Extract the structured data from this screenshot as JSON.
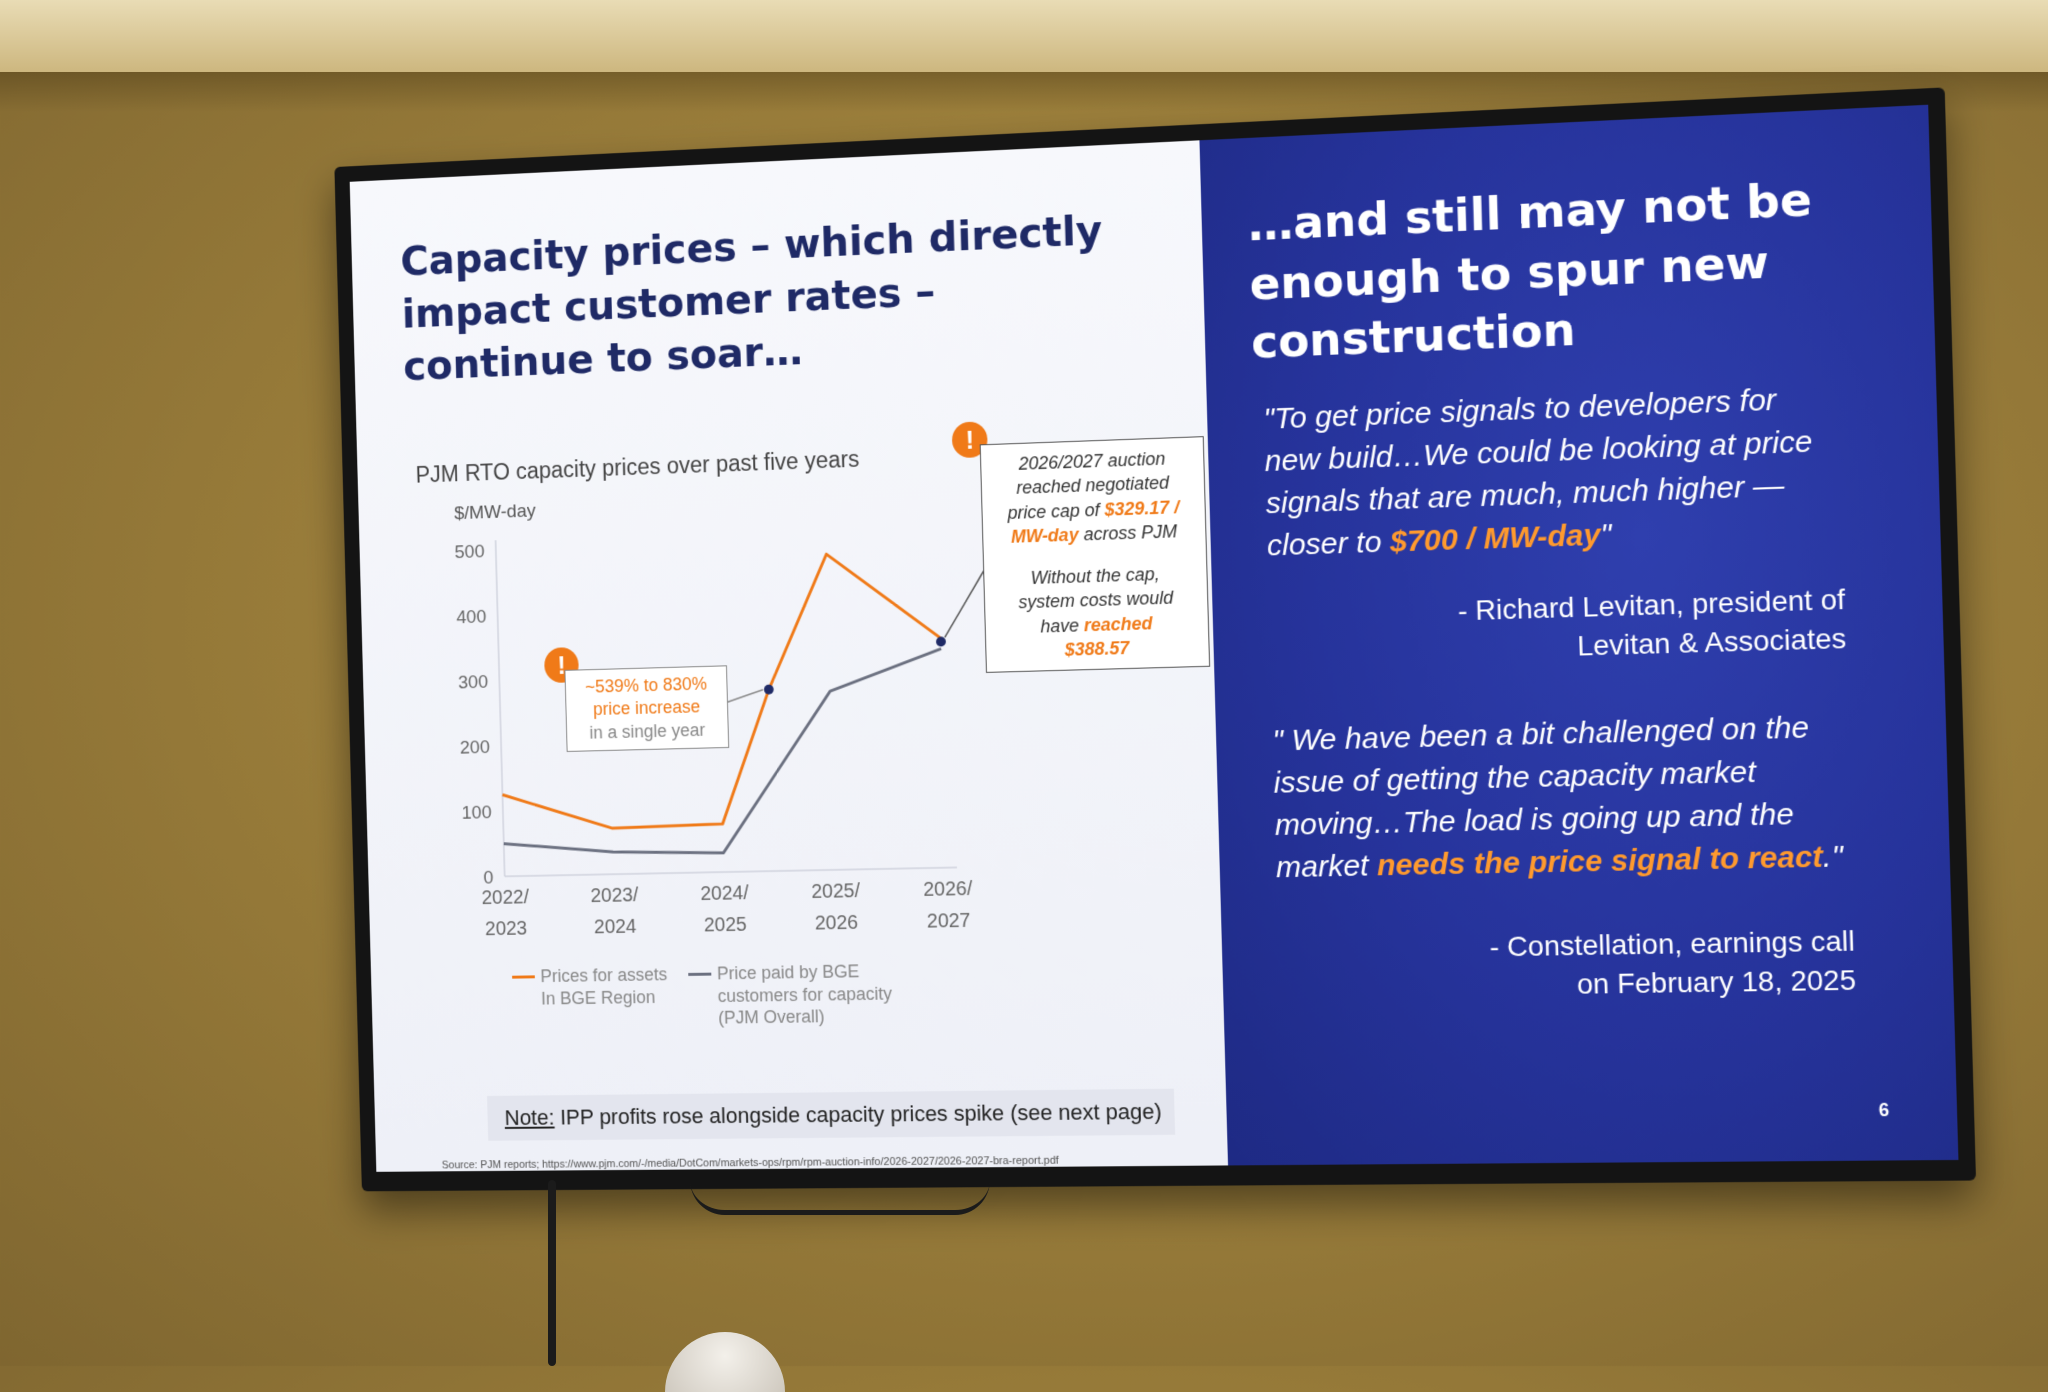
{
  "slide": {
    "left_title": "Capacity prices – which directly impact customer rates – continue to soar…",
    "right_title": "…and still may not be enough to spur new construction",
    "page_number": "6"
  },
  "chart_data": {
    "type": "line",
    "title": "PJM RTO capacity prices over past five years",
    "ylabel": "$/MW-day",
    "xlabel": "",
    "ylim": [
      0,
      500
    ],
    "yticks": [
      "0",
      "100",
      "200",
      "300",
      "400",
      "500"
    ],
    "categories": [
      "2022/ 2023",
      "2023/ 2024",
      "2024/ 2025",
      "2025/ 2026",
      "2026/ 2027"
    ],
    "category_lines": [
      [
        "2022/",
        "2023"
      ],
      [
        "2023/",
        "2024"
      ],
      [
        "2024/",
        "2025"
      ],
      [
        "2025/",
        "2026"
      ],
      [
        "2026/",
        "2027"
      ]
    ],
    "series": [
      {
        "name": "Prices for assets In BGE Region",
        "legend_lines": [
          "Prices for assets",
          "In BGE Region"
        ],
        "color": "#f07a18",
        "x": [
          0,
          1,
          2,
          2.45,
          3,
          4
        ],
        "values": [
          125,
          70,
          73,
          275,
          477,
          345
        ]
      },
      {
        "name": "Price paid by BGE customers for capacity (PJM Overall)",
        "legend_lines": [
          "Price paid by BGE",
          "customers for capacity",
          "(PJM Overall)"
        ],
        "color": "#6b7080",
        "x": [
          0,
          1,
          2,
          3,
          4
        ],
        "values": [
          50,
          34,
          29,
          270,
          329.17
        ]
      }
    ],
    "markers": [
      {
        "x": 2.45,
        "value": 275,
        "color": "#1f2a66"
      },
      {
        "x": 4,
        "value": 340,
        "color": "#1f2a66"
      }
    ],
    "annotations": {
      "increase": {
        "line1": "~539% to 830%",
        "line2": "price increase",
        "line3": "in a single year"
      },
      "auction": {
        "l1": "2026/2027 auction",
        "l2": "reached negotiated",
        "l3a": "price cap of ",
        "l3b": "$329.17 /",
        "l4a": "MW-day",
        "l4b": " across PJM",
        "l5": "Without the cap,",
        "l6": "system costs would",
        "l7a": "have ",
        "l7b": "reached",
        "l8": "$388.57"
      },
      "warn_glyph": "!"
    }
  },
  "note": {
    "label": "Note:",
    "text": " IPP profits rose alongside capacity prices spike (see next page)"
  },
  "source": "Source: PJM reports; https://www.pjm.com/-/media/DotCom/markets-ops/rpm/rpm-auction-info/2026-2027/2026-2027-bra-report.pdf",
  "quotes": [
    {
      "pre": "\"To get price signals to developers for new build…We could be looking at price signals that are much, much higher — closer to ",
      "highlight": "$700 / MW-day",
      "post": "\"",
      "attrib_line1": "-   Richard Levitan, president of",
      "attrib_line2": "Levitan & Associates"
    },
    {
      "pre": "\" We have been a bit challenged on the issue of getting the capacity market moving…The load is going up and the market ",
      "highlight": "needs the price signal to react",
      "post": ".\"",
      "attrib_line1": "-   Constellation, earnings call",
      "attrib_line2": "on February 18, 2025"
    }
  ]
}
